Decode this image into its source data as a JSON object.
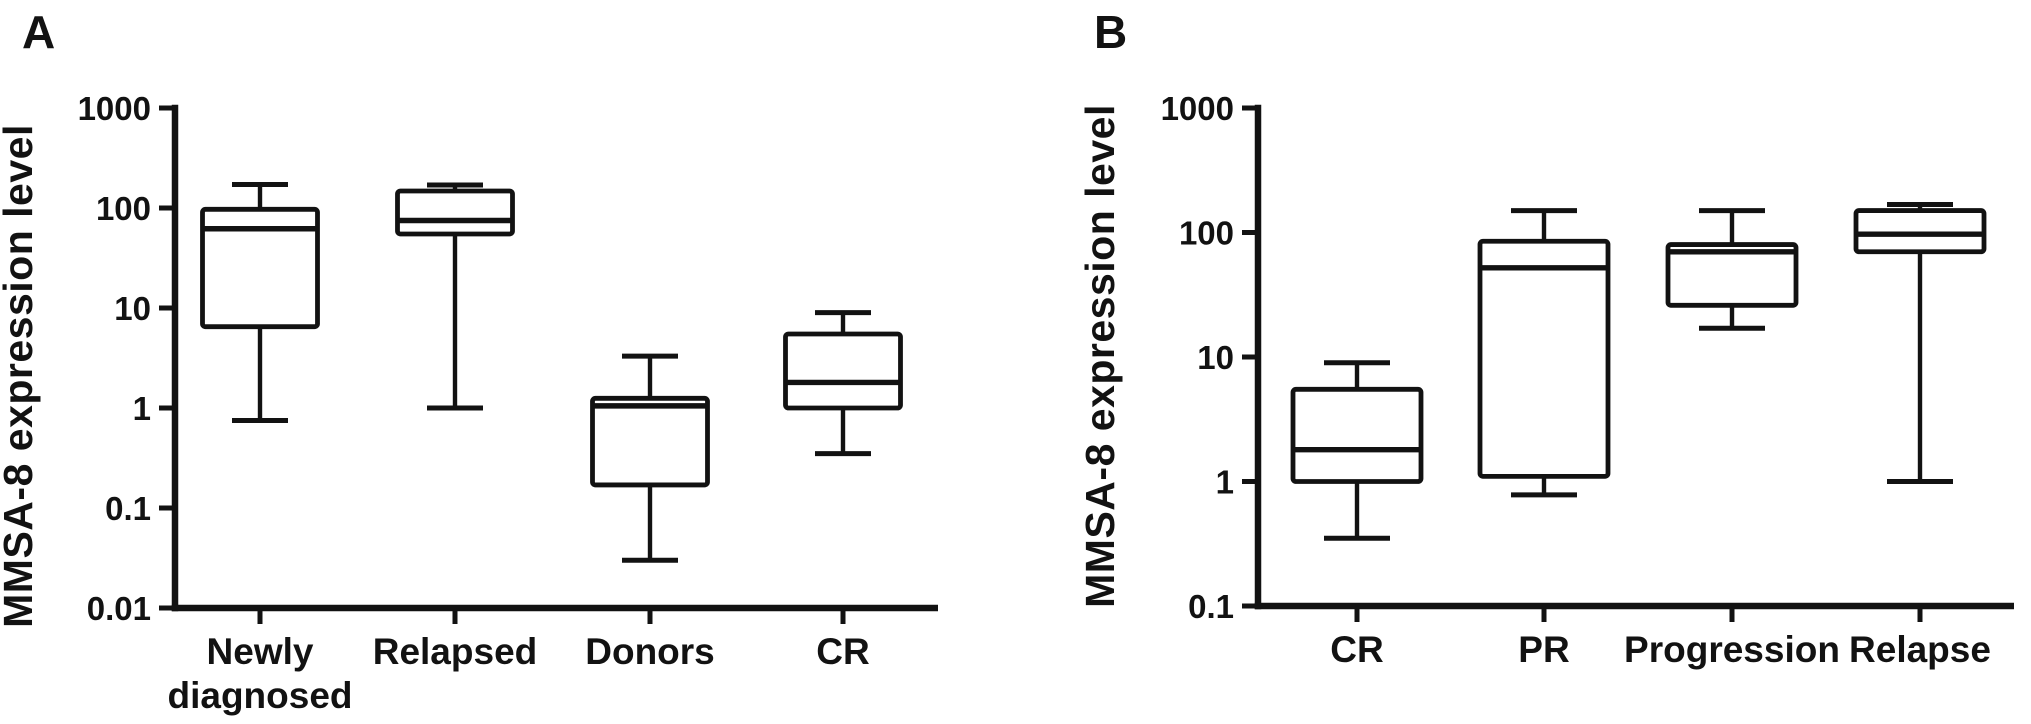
{
  "figure": {
    "background": "#ffffff",
    "ink_color": "#121212",
    "box_fill": "#ffffff"
  },
  "chart_data": [
    {
      "type": "box",
      "panel_label": "A",
      "ylabel": "MMSA-8 expression level",
      "yscale": "log",
      "ylim": [
        0.01,
        1000
      ],
      "yticks": [
        1000,
        100,
        10,
        1,
        0.1,
        0.01
      ],
      "ytick_labels": [
        "1000",
        "100",
        "10",
        "1",
        "0.1",
        "0.01"
      ],
      "grid": false,
      "legend": "none",
      "categories": [
        "Newly diagnosed",
        "Relapsed",
        "Donors",
        "CR"
      ],
      "category_label_lines": [
        [
          "Newly",
          "diagnosed"
        ],
        [
          "Relapsed"
        ],
        [
          "Donors"
        ],
        [
          "CR"
        ]
      ],
      "series": [
        {
          "name": "Newly diagnosed",
          "min": 0.75,
          "q1": 6.5,
          "median": 62,
          "q3": 97,
          "max": 172
        },
        {
          "name": "Relapsed",
          "min": 1.0,
          "q1": 55,
          "median": 75,
          "q3": 148,
          "max": 170
        },
        {
          "name": "Donors",
          "min": 0.03,
          "q1": 0.17,
          "median": 1.05,
          "q3": 1.25,
          "max": 3.3
        },
        {
          "name": "CR",
          "min": 0.35,
          "q1": 1.0,
          "median": 1.8,
          "q3": 5.5,
          "max": 9
        }
      ]
    },
    {
      "type": "box",
      "panel_label": "B",
      "ylabel": "MMSA-8 expression level",
      "yscale": "log",
      "ylim": [
        0.1,
        1000
      ],
      "yticks": [
        1000,
        100,
        10,
        1,
        0.1
      ],
      "ytick_labels": [
        "1000",
        "100",
        "10",
        "1",
        "0.1"
      ],
      "grid": false,
      "legend": "none",
      "categories": [
        "CR",
        "PR",
        "Progression",
        "Relapse"
      ],
      "category_label_lines": [
        [
          "CR"
        ],
        [
          "PR"
        ],
        [
          "Progression"
        ],
        [
          "Relapse"
        ]
      ],
      "series": [
        {
          "name": "CR",
          "min": 0.35,
          "q1": 1.0,
          "median": 1.8,
          "q3": 5.5,
          "max": 9
        },
        {
          "name": "PR",
          "min": 0.78,
          "q1": 1.1,
          "median": 52,
          "q3": 85,
          "max": 150
        },
        {
          "name": "Progression",
          "min": 17,
          "q1": 26,
          "median": 70,
          "q3": 80,
          "max": 150
        },
        {
          "name": "Relapse",
          "min": 1.0,
          "q1": 70,
          "median": 97,
          "q3": 150,
          "max": 168
        }
      ]
    }
  ]
}
